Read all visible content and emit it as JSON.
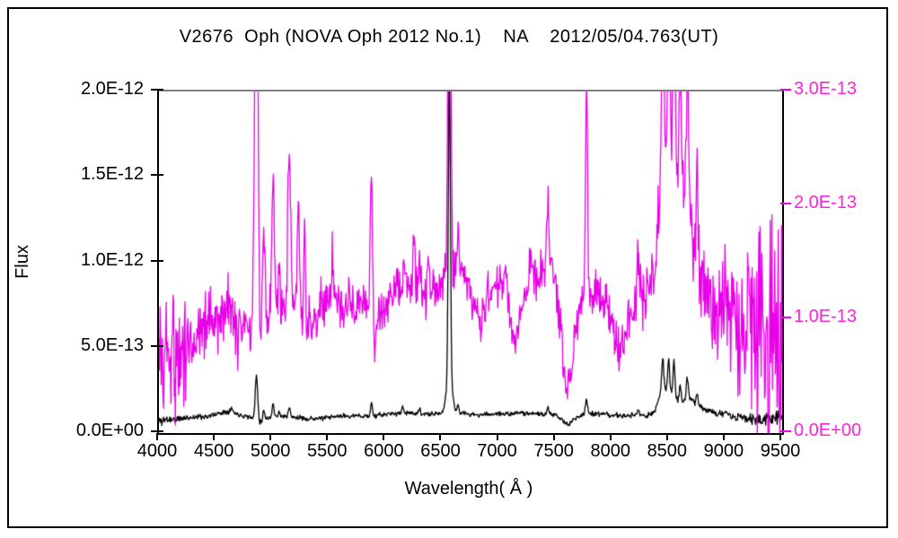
{
  "title": "V2676  Oph (NOVA Oph 2012 No.1)    NA    2012/05/04.763(UT)",
  "colors": {
    "black_series": "#000000",
    "magenta_series": "#e800e8",
    "magenta_label": "#ff22dd",
    "frame_top": "#808080",
    "frame": "#000000",
    "background": "#ffffff"
  },
  "chart_data": {
    "type": "line",
    "title": "V2676  Oph (NOVA Oph 2012 No.1)    NA    2012/05/04.763(UT)",
    "xlabel": "Wavelength( Å )",
    "ylabel": "Flux",
    "grid": false,
    "legend": "none",
    "x_range": [
      4000,
      9500
    ],
    "x_ticks": [
      [
        "4000",
        "4000"
      ],
      [
        "4500",
        "4500"
      ],
      [
        "5000",
        "5000"
      ],
      [
        "5500",
        "5500"
      ],
      [
        "6000",
        "6000"
      ],
      [
        "6500",
        "6500"
      ],
      [
        "7000",
        "7000"
      ],
      [
        "7500",
        "7500"
      ],
      [
        "8000",
        "8000"
      ],
      [
        "8500",
        "8500"
      ],
      [
        "9000",
        "9000"
      ],
      [
        "9500",
        "9500"
      ]
    ],
    "left_axis": {
      "max": 2.0,
      "unit": "1e-12",
      "color": "#000000",
      "ticks": [
        [
          0.0,
          "0.0E+00"
        ],
        [
          0.5,
          "5.0E-13"
        ],
        [
          1.0,
          "1.0E-12"
        ],
        [
          1.5,
          "1.5E-12"
        ],
        [
          2.0,
          "2.0E-12"
        ]
      ]
    },
    "right_axis": {
      "max": 3.0,
      "unit": "1e-13",
      "color": "#ff22dd",
      "ticks": [
        [
          0.0,
          "0.0E+00"
        ],
        [
          1.0,
          "1.0E-13"
        ],
        [
          2.0,
          "2.0E-13"
        ],
        [
          3.0,
          "3.0E-13"
        ]
      ]
    },
    "series": [
      {
        "name": "spectrum-black",
        "axis": "left",
        "color": "#000000",
        "seed": 11,
        "continuum": [
          [
            4000,
            0.07
          ],
          [
            4060,
            0.08
          ],
          [
            4150,
            0.08
          ],
          [
            4250,
            0.09
          ],
          [
            4350,
            0.095
          ],
          [
            4450,
            0.1
          ],
          [
            4550,
            0.12
          ],
          [
            4620,
            0.13
          ],
          [
            4700,
            0.11
          ],
          [
            4800,
            0.095
          ],
          [
            4890,
            0.06
          ],
          [
            4960,
            0.09
          ],
          [
            5050,
            0.1
          ],
          [
            5150,
            0.095
          ],
          [
            5300,
            0.085
          ],
          [
            5400,
            0.085
          ],
          [
            5500,
            0.09
          ],
          [
            5600,
            0.1
          ],
          [
            5800,
            0.1
          ],
          [
            5900,
            0.1
          ],
          [
            6000,
            0.11
          ],
          [
            6100,
            0.115
          ],
          [
            6200,
            0.12
          ],
          [
            6300,
            0.11
          ],
          [
            6400,
            0.11
          ],
          [
            6500,
            0.115
          ],
          [
            6600,
            0.12
          ],
          [
            6700,
            0.115
          ],
          [
            6800,
            0.105
          ],
          [
            6900,
            0.11
          ],
          [
            7000,
            0.115
          ],
          [
            7100,
            0.11
          ],
          [
            7200,
            0.12
          ],
          [
            7300,
            0.115
          ],
          [
            7400,
            0.11
          ],
          [
            7500,
            0.105
          ],
          [
            7560,
            0.08
          ],
          [
            7610,
            0.045
          ],
          [
            7660,
            0.08
          ],
          [
            7700,
            0.1
          ],
          [
            7800,
            0.115
          ],
          [
            7900,
            0.11
          ],
          [
            8000,
            0.105
          ],
          [
            8100,
            0.1
          ],
          [
            8200,
            0.105
          ],
          [
            8300,
            0.1
          ],
          [
            8370,
            0.12
          ],
          [
            8420,
            0.22
          ],
          [
            8470,
            0.25
          ],
          [
            8520,
            0.24
          ],
          [
            8570,
            0.2
          ],
          [
            8620,
            0.18
          ],
          [
            8670,
            0.22
          ],
          [
            8700,
            0.2
          ],
          [
            8750,
            0.17
          ],
          [
            8820,
            0.14
          ],
          [
            8900,
            0.12
          ],
          [
            9000,
            0.105
          ],
          [
            9100,
            0.09
          ],
          [
            9200,
            0.085
          ],
          [
            9300,
            0.08
          ],
          [
            9400,
            0.085
          ],
          [
            9500,
            0.09
          ]
        ],
        "peaks": [
          [
            4640,
            0.02,
            10
          ],
          [
            4861,
            0.27,
            11
          ],
          [
            4925,
            0.06,
            8
          ],
          [
            5007,
            0.075,
            8
          ],
          [
            5060,
            0.03,
            7
          ],
          [
            5150,
            0.05,
            9
          ],
          [
            5876,
            0.075,
            8
          ],
          [
            6150,
            0.04,
            7
          ],
          [
            6300,
            0.035,
            7
          ],
          [
            6563,
            1.8,
            9
          ],
          [
            6563,
            0.22,
            25
          ],
          [
            6640,
            0.05,
            7
          ],
          [
            7433,
            0.04,
            8
          ],
          [
            7773,
            0.09,
            9
          ],
          [
            8230,
            0.04,
            7
          ],
          [
            8446,
            0.2,
            9
          ],
          [
            8498,
            0.2,
            8
          ],
          [
            8545,
            0.21,
            8
          ],
          [
            8600,
            0.1,
            7
          ],
          [
            8662,
            0.12,
            8
          ],
          [
            8750,
            0.06,
            7
          ],
          [
            9000,
            0.03,
            7
          ]
        ],
        "noise": [
          [
            4000,
            0.022
          ],
          [
            4100,
            0.015
          ],
          [
            4300,
            0.01
          ],
          [
            5000,
            0.008
          ],
          [
            6000,
            0.008
          ],
          [
            7000,
            0.008
          ],
          [
            8000,
            0.009
          ],
          [
            8800,
            0.012
          ],
          [
            9100,
            0.015
          ],
          [
            9300,
            0.02
          ],
          [
            9400,
            0.03
          ],
          [
            9500,
            0.035
          ]
        ]
      },
      {
        "name": "spectrum-magenta",
        "axis": "right",
        "color": "#e800e8",
        "seed": 5,
        "continuum": [
          [
            4000,
            0.7
          ],
          [
            4050,
            0.65
          ],
          [
            4100,
            0.72
          ],
          [
            4150,
            0.68
          ],
          [
            4250,
            0.8
          ],
          [
            4350,
            0.9
          ],
          [
            4450,
            1.0
          ],
          [
            4550,
            1.05
          ],
          [
            4620,
            1.1
          ],
          [
            4700,
            0.92
          ],
          [
            4780,
            0.95
          ],
          [
            4820,
            0.78
          ],
          [
            4845,
            1.0
          ],
          [
            4885,
            0.62
          ],
          [
            4915,
            0.95
          ],
          [
            4960,
            1.02
          ],
          [
            5050,
            1.1
          ],
          [
            5150,
            1.1
          ],
          [
            5250,
            1.0
          ],
          [
            5320,
            0.92
          ],
          [
            5400,
            1.0
          ],
          [
            5480,
            1.2
          ],
          [
            5560,
            1.22
          ],
          [
            5640,
            1.05
          ],
          [
            5720,
            1.08
          ],
          [
            5820,
            1.12
          ],
          [
            5880,
            1.1
          ],
          [
            5905,
            0.68
          ],
          [
            5930,
            1.0
          ],
          [
            6000,
            1.1
          ],
          [
            6080,
            1.18
          ],
          [
            6160,
            1.25
          ],
          [
            6240,
            1.28
          ],
          [
            6320,
            1.2
          ],
          [
            6400,
            1.25
          ],
          [
            6480,
            1.3
          ],
          [
            6540,
            1.4
          ],
          [
            6620,
            1.45
          ],
          [
            6700,
            1.4
          ],
          [
            6780,
            1.12
          ],
          [
            6840,
            1.0
          ],
          [
            6900,
            1.25
          ],
          [
            6960,
            1.3
          ],
          [
            7030,
            1.3
          ],
          [
            7100,
            1.05
          ],
          [
            7150,
            0.85
          ],
          [
            7200,
            1.1
          ],
          [
            7280,
            1.3
          ],
          [
            7360,
            1.35
          ],
          [
            7430,
            1.55
          ],
          [
            7490,
            1.35
          ],
          [
            7540,
            1.0
          ],
          [
            7590,
            0.4
          ],
          [
            7640,
            0.55
          ],
          [
            7690,
            1.05
          ],
          [
            7740,
            1.15
          ],
          [
            7800,
            1.25
          ],
          [
            7870,
            1.2
          ],
          [
            7950,
            1.1
          ],
          [
            8030,
            0.85
          ],
          [
            8060,
            0.72
          ],
          [
            8100,
            0.8
          ],
          [
            8170,
            1.0
          ],
          [
            8240,
            1.25
          ],
          [
            8300,
            1.2
          ],
          [
            8370,
            1.45
          ],
          [
            8420,
            2.0
          ],
          [
            8470,
            2.4
          ],
          [
            8520,
            2.5
          ],
          [
            8570,
            2.3
          ],
          [
            8620,
            2.2
          ],
          [
            8670,
            2.0
          ],
          [
            8700,
            1.8
          ],
          [
            8750,
            1.45
          ],
          [
            8820,
            1.2
          ],
          [
            8880,
            1.05
          ],
          [
            8940,
            1.15
          ],
          [
            9000,
            1.2
          ],
          [
            9060,
            1.0
          ],
          [
            9120,
            0.85
          ],
          [
            9180,
            0.95
          ],
          [
            9250,
            0.85
          ],
          [
            9320,
            0.75
          ],
          [
            9400,
            0.7
          ],
          [
            9500,
            0.75
          ]
        ],
        "peaks": [
          [
            4861,
            4.0,
            14
          ],
          [
            4925,
            0.9,
            10
          ],
          [
            5007,
            1.3,
            10
          ],
          [
            5060,
            0.5,
            8
          ],
          [
            5150,
            1.45,
            12
          ],
          [
            5230,
            1.0,
            10
          ],
          [
            5285,
            0.9,
            9
          ],
          [
            5420,
            0.3,
            8
          ],
          [
            5535,
            0.35,
            10
          ],
          [
            5680,
            0.2,
            8
          ],
          [
            5876,
            1.15,
            10
          ],
          [
            6100,
            0.25,
            8
          ],
          [
            6160,
            0.35,
            8
          ],
          [
            6250,
            0.4,
            8
          ],
          [
            6300,
            0.35,
            8
          ],
          [
            6380,
            0.25,
            8
          ],
          [
            6563,
            3.5,
            12
          ],
          [
            6640,
            0.4,
            8
          ],
          [
            7065,
            0.25,
            8
          ],
          [
            7280,
            0.2,
            8
          ],
          [
            7433,
            0.45,
            9
          ],
          [
            7773,
            1.75,
            10
          ],
          [
            8230,
            0.45,
            8
          ],
          [
            8446,
            1.8,
            10
          ],
          [
            8500,
            1.6,
            9
          ],
          [
            8545,
            1.7,
            9
          ],
          [
            8600,
            1.0,
            8
          ],
          [
            8665,
            1.3,
            9
          ],
          [
            8750,
            0.9,
            8
          ],
          [
            9000,
            0.3,
            8
          ],
          [
            9230,
            0.4,
            8
          ]
        ],
        "noise": [
          [
            4000,
            0.45
          ],
          [
            4150,
            0.4
          ],
          [
            4300,
            0.25
          ],
          [
            4500,
            0.18
          ],
          [
            5000,
            0.15
          ],
          [
            5500,
            0.13
          ],
          [
            6000,
            0.13
          ],
          [
            6500,
            0.12
          ],
          [
            7000,
            0.12
          ],
          [
            7500,
            0.12
          ],
          [
            8000,
            0.15
          ],
          [
            8500,
            0.2
          ],
          [
            8800,
            0.25
          ],
          [
            9000,
            0.3
          ],
          [
            9150,
            0.35
          ],
          [
            9250,
            0.55
          ],
          [
            9320,
            0.8
          ],
          [
            9400,
            0.85
          ],
          [
            9500,
            0.85
          ]
        ]
      }
    ]
  }
}
